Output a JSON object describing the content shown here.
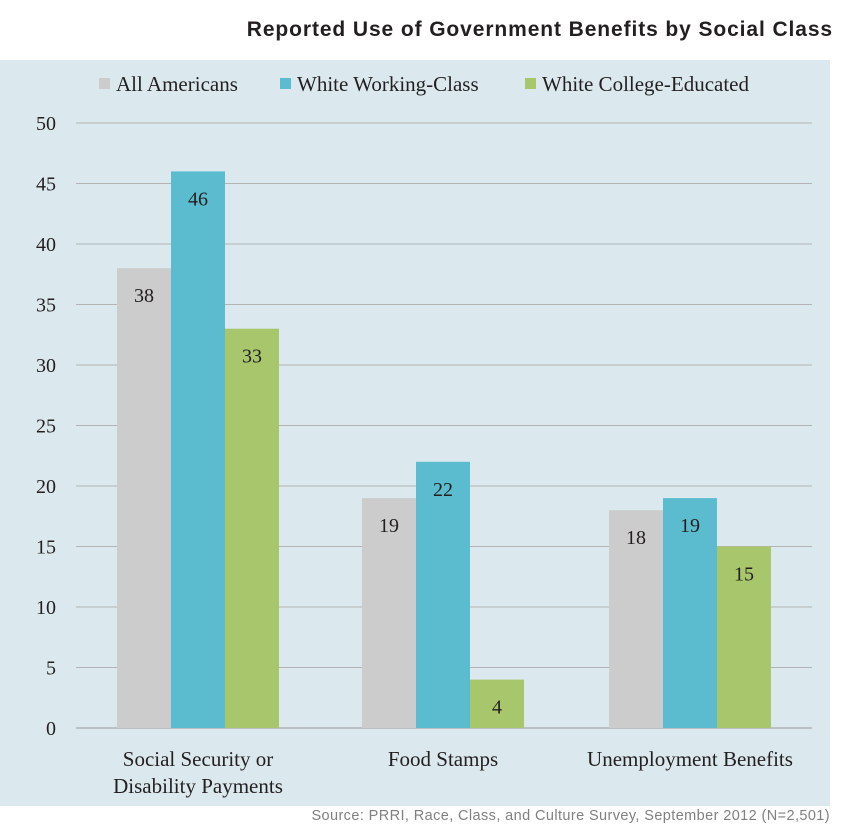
{
  "title": "Reported Use of Government Benefits by Social Class",
  "source": "Source: PRRI, Race, Class, and Culture Survey, September 2012 (N=2,501)",
  "colors": {
    "background": "#dbe9ee",
    "gridline": "#b3b3b3",
    "all_americans": "#cccccc",
    "white_working_class": "#5bbccf",
    "white_college_educated": "#a8c66c"
  },
  "chart_data": {
    "type": "bar",
    "title": "Reported Use of Government Benefits by Social Class",
    "categories": [
      [
        "Social Security or",
        "Disability Payments"
      ],
      [
        "Food Stamps"
      ],
      [
        "Unemployment Benefits"
      ]
    ],
    "series": [
      {
        "name": "All Americans",
        "color": "#cccccc",
        "values": [
          38,
          19,
          18
        ]
      },
      {
        "name": "White Working-Class",
        "color": "#5bbccf",
        "values": [
          46,
          22,
          19
        ]
      },
      {
        "name": "White College-Educated",
        "color": "#a8c66c",
        "values": [
          33,
          4,
          15
        ]
      }
    ],
    "yticks": [
      "0",
      "5",
      "10",
      "15",
      "20",
      "25",
      "30",
      "35",
      "40",
      "45",
      "50"
    ],
    "ylim": [
      0,
      50
    ],
    "grid": true,
    "legend_position": "top"
  }
}
